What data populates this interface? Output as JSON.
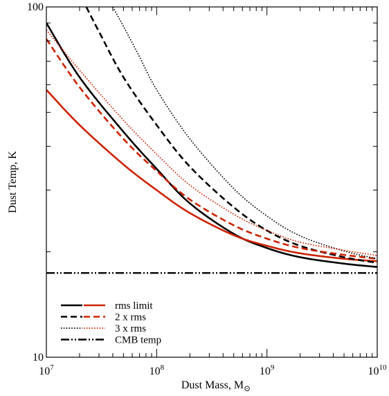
{
  "chart_data": {
    "type": "line",
    "title": "",
    "xlabel": "Dust Mass, M",
    "xlabel_subscript": "⊙",
    "ylabel": "Dust Temp, K",
    "xscale": "log",
    "yscale": "log",
    "xlim": [
      10000000.0,
      10000000000.0
    ],
    "ylim": [
      10,
      100
    ],
    "grid": false,
    "legend_position": "bottom-left",
    "x_ticks": [
      {
        "value": 10000000.0,
        "base": "10",
        "exp": "7"
      },
      {
        "value": 100000000.0,
        "base": "10",
        "exp": "8"
      },
      {
        "value": 1000000000.0,
        "base": "10",
        "exp": "9"
      },
      {
        "value": 10000000000.0,
        "base": "10",
        "exp": "10"
      }
    ],
    "y_ticks": [
      {
        "value": 10,
        "label": "10"
      },
      {
        "value": 100,
        "label": "100"
      }
    ],
    "legend": [
      {
        "label": "rms limit",
        "style": "solid"
      },
      {
        "label": "2 x rms",
        "style": "dashed"
      },
      {
        "label": "3 x rms",
        "style": "dotted"
      },
      {
        "label": "CMB temp",
        "style": "dashdotdot"
      }
    ],
    "colors": {
      "black": "#000000",
      "red": "#cc2200"
    },
    "series": [
      {
        "color": "black",
        "style": "solid",
        "x": [
          10000000.0,
          20000000.0,
          50000000.0,
          100000000.0,
          200000000.0,
          500000000.0,
          1000000000.0,
          2000000000.0,
          5000000000.0,
          10000000000.0
        ],
        "y": [
          90,
          63,
          44,
          34.5,
          27.5,
          22.5,
          20.5,
          19.3,
          18.5,
          18.1
        ]
      },
      {
        "color": "red",
        "style": "solid",
        "x": [
          10000000.0,
          20000000.0,
          50000000.0,
          100000000.0,
          200000000.0,
          500000000.0,
          1000000000.0,
          2000000000.0,
          5000000000.0,
          10000000000.0
        ],
        "y": [
          58,
          46,
          35.5,
          30,
          25.8,
          22.3,
          20.8,
          19.8,
          19.1,
          18.8
        ]
      },
      {
        "color": "black",
        "style": "dashed",
        "x": [
          23000000.0,
          30000000.0,
          50000000.0,
          100000000.0,
          200000000.0,
          500000000.0,
          1000000000.0,
          2000000000.0,
          5000000000.0,
          10000000000.0
        ],
        "y": [
          100,
          85,
          63,
          46,
          35,
          26.8,
          23,
          20.8,
          19.3,
          18.6
        ]
      },
      {
        "color": "red",
        "style": "dashed",
        "x": [
          10000000.0,
          20000000.0,
          50000000.0,
          100000000.0,
          200000000.0,
          500000000.0,
          1000000000.0,
          2000000000.0,
          5000000000.0,
          10000000000.0
        ],
        "y": [
          81,
          59,
          42,
          34,
          28.2,
          23.8,
          21.8,
          20.5,
          19.6,
          19.1
        ]
      },
      {
        "color": "black",
        "style": "dotted",
        "x": [
          40000000.0,
          50000000.0,
          70000000.0,
          100000000.0,
          200000000.0,
          500000000.0,
          1000000000.0,
          2000000000.0,
          5000000000.0,
          10000000000.0
        ],
        "y": [
          100,
          88,
          72,
          58,
          42,
          30.3,
          25.3,
          22.2,
          20.1,
          19.1
        ]
      },
      {
        "color": "red",
        "style": "dotted",
        "x": [
          10000000.0,
          20000000.0,
          50000000.0,
          100000000.0,
          200000000.0,
          500000000.0,
          1000000000.0,
          2000000000.0,
          5000000000.0,
          10000000000.0
        ],
        "y": [
          86,
          66,
          47.5,
          38,
          31,
          25.6,
          23,
          21.3,
          20.2,
          19.5
        ]
      },
      {
        "color": "black",
        "style": "dashdotdot",
        "x": [
          10000000.0,
          10000000000.0
        ],
        "y": [
          17.4,
          17.4
        ]
      }
    ]
  }
}
